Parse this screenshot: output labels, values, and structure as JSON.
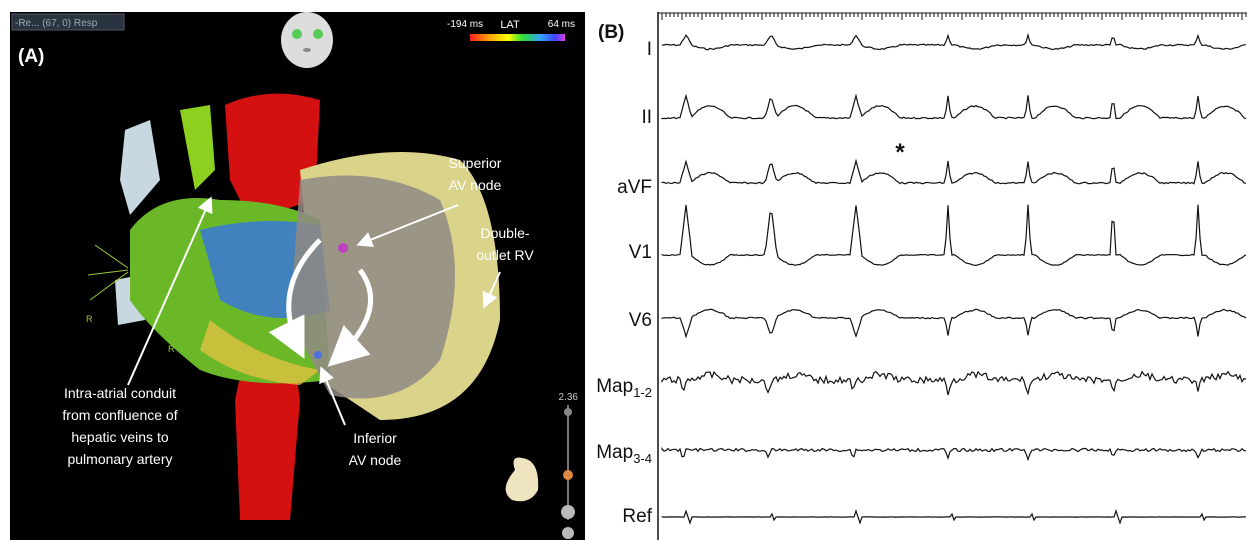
{
  "panel_a": {
    "label": "(A)",
    "dropdown": "-Re... (67, 0) Resp",
    "lat_scale": {
      "min": "-194 ms",
      "title": "LAT",
      "max": "64 ms"
    },
    "annotations": [
      {
        "lines": [
          "Superior",
          "AV node"
        ]
      },
      {
        "lines": [
          "Double-",
          "outlet RV"
        ]
      },
      {
        "lines": [
          "Intra-atrial conduit",
          "from confluence of",
          "hepatic veins to",
          "pulmonary artery"
        ]
      },
      {
        "lines": [
          "Inferior",
          "AV node"
        ]
      }
    ],
    "zoom": "2.36",
    "orientation_marks": [
      "R",
      "R"
    ]
  },
  "panel_b": {
    "label": "(B)",
    "asterisk": "*",
    "leads": [
      {
        "name": "I"
      },
      {
        "name": "II"
      },
      {
        "name": "aVF"
      },
      {
        "name": "V1"
      },
      {
        "name": "V6"
      },
      {
        "name": "Map",
        "sub": "1-2"
      },
      {
        "name": "Map",
        "sub": "3-4"
      },
      {
        "name": "Ref"
      }
    ]
  }
}
